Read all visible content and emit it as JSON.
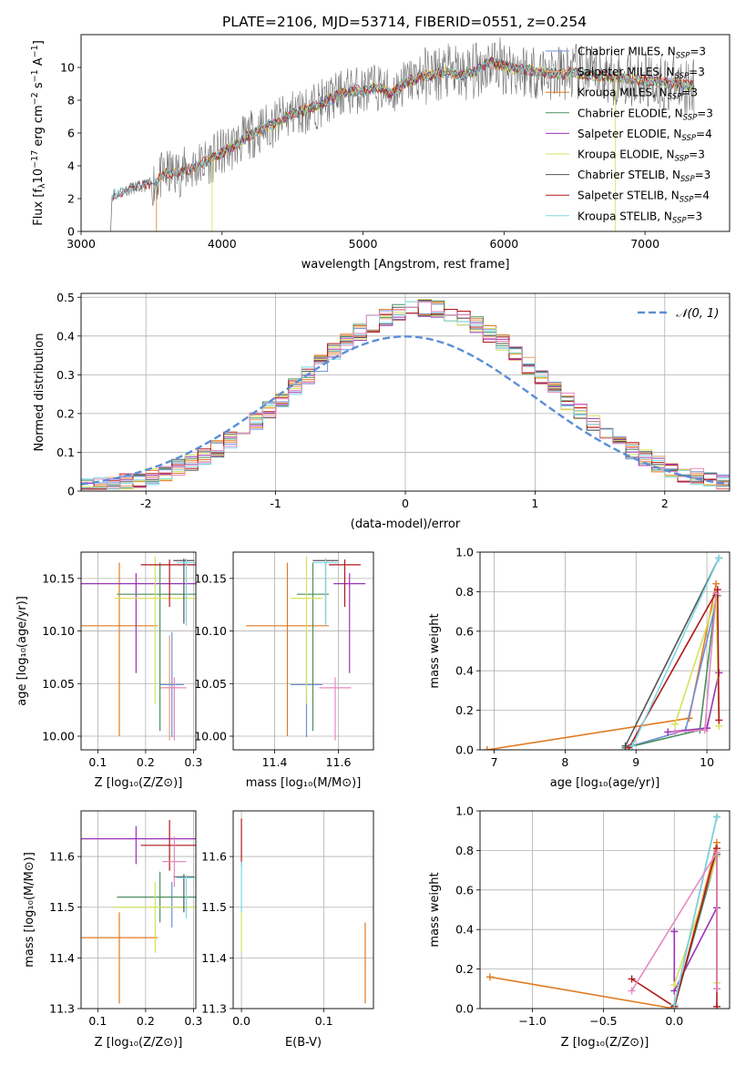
{
  "figure_title": "PLATE=2106, MJD=53714, FIBERID=0551, z=0.254",
  "colors": {
    "Chabrier MILES": "#6f8fd8",
    "Salpeter MILES": "#e8a06a",
    "Kroupa MILES": "#e07b22",
    "Chabrier ELODIE": "#4a8f5f",
    "Salpeter ELODIE": "#9b33b8",
    "Kroupa ELODIE": "#d6e15c",
    "Chabrier STELIB": "#555555",
    "Salpeter STELIB": "#b01919",
    "Kroupa STELIB": "#7ed8e6",
    "pink": "#e589c0",
    "gauss": "#5b8fd6"
  },
  "chart_data": [
    {
      "id": "spectrum",
      "type": "line",
      "xlabel": "wavelength [Angstrom, rest frame]",
      "ylabel_parts": [
        "Flux [f",
        "λ",
        "10",
        "−17",
        " erg cm",
        "−2",
        " s",
        "−1",
        " A",
        "−1",
        "]"
      ],
      "xlim": [
        3000,
        7600
      ],
      "ylim": [
        0,
        12
      ],
      "xticks": [
        3000,
        4000,
        5000,
        6000,
        7000
      ],
      "yticks": [
        0,
        2,
        4,
        6,
        8,
        10
      ],
      "grid": false,
      "legend_position": "right",
      "legend": [
        {
          "name": "Chabrier MILES",
          "nssp": "3"
        },
        {
          "name": "Salpeter MILES",
          "nssp": "3"
        },
        {
          "name": "Kroupa MILES",
          "nssp": "3"
        },
        {
          "name": "Chabrier ELODIE",
          "nssp": "3"
        },
        {
          "name": "Salpeter ELODIE",
          "nssp": "4"
        },
        {
          "name": "Kroupa ELODIE",
          "nssp": "3"
        },
        {
          "name": "Chabrier STELIB",
          "nssp": "3"
        },
        {
          "name": "Salpeter STELIB",
          "nssp": "4"
        },
        {
          "name": "Kroupa STELIB",
          "nssp": "3"
        }
      ],
      "continuum_points": [
        [
          3220,
          2.2
        ],
        [
          3300,
          2.5
        ],
        [
          3400,
          2.7
        ],
        [
          3500,
          2.9
        ],
        [
          3600,
          3.5
        ],
        [
          3700,
          3.6
        ],
        [
          3800,
          3.9
        ],
        [
          3900,
          4.3
        ],
        [
          4000,
          4.8
        ],
        [
          4100,
          5.3
        ],
        [
          4200,
          5.9
        ],
        [
          4300,
          6.3
        ],
        [
          4400,
          6.7
        ],
        [
          4500,
          7.2
        ],
        [
          4600,
          7.4
        ],
        [
          4700,
          7.8
        ],
        [
          4800,
          8.2
        ],
        [
          4900,
          8.6
        ],
        [
          5000,
          8.6
        ],
        [
          5100,
          8.8
        ],
        [
          5200,
          8.4
        ],
        [
          5300,
          9.1
        ],
        [
          5400,
          9.4
        ],
        [
          5500,
          9.6
        ],
        [
          5600,
          9.7
        ],
        [
          5700,
          9.5
        ],
        [
          5800,
          9.8
        ],
        [
          5900,
          10.3
        ],
        [
          6000,
          10.1
        ],
        [
          6100,
          9.9
        ],
        [
          6200,
          9.8
        ],
        [
          6300,
          9.7
        ],
        [
          6400,
          9.6
        ],
        [
          6500,
          9.7
        ],
        [
          6600,
          9.5
        ],
        [
          6700,
          9.5
        ],
        [
          6800,
          9.4
        ],
        [
          6900,
          9.3
        ],
        [
          7000,
          9.2
        ],
        [
          7100,
          9.1
        ],
        [
          7200,
          9.0
        ],
        [
          7300,
          8.9
        ],
        [
          7350,
          8.9
        ]
      ]
    },
    {
      "id": "residuals",
      "type": "histogram",
      "xlabel": "(data-model)/error",
      "ylabel": "Normed distribution",
      "xlim": [
        -2.5,
        2.5
      ],
      "ylim": [
        0,
        0.51
      ],
      "xticks": [
        -2,
        -1,
        0,
        1,
        2
      ],
      "yticks": [
        0.0,
        0.1,
        0.2,
        0.3,
        0.4,
        0.5
      ],
      "grid": true,
      "legend_position": "top-right",
      "gaussian_label": "𝒩(0, 1)",
      "gaussian_mean": 0,
      "gaussian_sigma": 1,
      "bin_width": 0.1
    },
    {
      "id": "age_vs_Z",
      "type": "errorbar",
      "xlabel": "Z [log₁₀(Z/Z⊙)]",
      "ylabel": "age  [log₁₀(age/yr)]",
      "xlim": [
        0.065,
        0.305
      ],
      "ylim": [
        9.987,
        10.175
      ],
      "xticks": [
        0.1,
        0.2,
        0.3
      ],
      "yticks": [
        "10.00",
        "10.05",
        "10.10",
        "10.15"
      ],
      "grid": true,
      "points": [
        {
          "model": "Kroupa MILES",
          "x": 0.145,
          "xerr": 0.08,
          "y": 10.105,
          "yerr": [
            0.105,
            0.06
          ]
        },
        {
          "model": "Salpeter MILES",
          "x": 0.25,
          "xerr": 0.02,
          "y": 10.046,
          "yerr": [
            0.05,
            0.05
          ]
        },
        {
          "model": "Chabrier MILES",
          "x": 0.255,
          "xerr": 0.025,
          "y": 10.049,
          "yerr": [
            0.05,
            0.05
          ]
        },
        {
          "model": "Salpeter ELODIE",
          "x": 0.18,
          "xerr": 0.125,
          "y": 10.145,
          "yerr": [
            0.085,
            0.01
          ]
        },
        {
          "model": "Chabrier ELODIE",
          "x": 0.23,
          "xerr": 0.09,
          "y": 10.135,
          "yerr": [
            0.13,
            0.03
          ]
        },
        {
          "model": "Kroupa ELODIE",
          "x": 0.22,
          "xerr": 0.085,
          "y": 10.131,
          "yerr": [
            0.1,
            0.04
          ]
        },
        {
          "model": "Salpeter STELIB",
          "x": 0.25,
          "xerr": 0.06,
          "y": 10.163,
          "yerr": [
            0.04,
            0.005
          ]
        },
        {
          "model": "Chabrier STELIB",
          "x": 0.28,
          "xerr": 0.022,
          "y": 10.167,
          "yerr": [
            0.06,
            0.002
          ]
        },
        {
          "model": "Kroupa STELIB",
          "x": 0.285,
          "xerr": 0.02,
          "y": 10.165,
          "yerr": [
            0.06,
            0.004
          ]
        },
        {
          "model": "pink",
          "x": 0.26,
          "xerr": 0.025,
          "y": 10.046,
          "yerr": [
            0.05,
            0.01
          ]
        }
      ]
    },
    {
      "id": "age_vs_mass",
      "type": "errorbar",
      "xlabel": "mass [log₁₀(M/M⊙)]",
      "ylabel": "",
      "xlim": [
        11.27,
        11.71
      ],
      "ylim": [
        9.987,
        10.175
      ],
      "xticks": [
        "11.4",
        "11.6"
      ],
      "yticks": [
        "10.00",
        "10.05",
        "10.10",
        "10.15"
      ],
      "grid": true,
      "points": [
        {
          "model": "Kroupa MILES",
          "x": 11.44,
          "xerr": 0.13,
          "y": 10.105,
          "yerr": [
            0.105,
            0.06
          ]
        },
        {
          "model": "Chabrier MILES",
          "x": 11.5,
          "xerr": 0.05,
          "y": 10.049,
          "yerr": [
            0.05,
            0.05
          ]
        },
        {
          "model": "Salpeter ELODIE",
          "x": 11.635,
          "xerr": 0.05,
          "y": 10.145,
          "yerr": [
            0.085,
            0.01
          ]
        },
        {
          "model": "Chabrier ELODIE",
          "x": 11.52,
          "xerr": 0.05,
          "y": 10.135,
          "yerr": [
            0.13,
            0.03
          ]
        },
        {
          "model": "Kroupa ELODIE",
          "x": 11.5,
          "xerr": 0.05,
          "y": 10.131,
          "yerr": [
            0.1,
            0.04
          ]
        },
        {
          "model": "Salpeter STELIB",
          "x": 11.62,
          "xerr": 0.05,
          "y": 10.163,
          "yerr": [
            0.04,
            0.005
          ]
        },
        {
          "model": "Chabrier STELIB",
          "x": 11.56,
          "xerr": 0.04,
          "y": 10.167,
          "yerr": [
            0.06,
            0.002
          ]
        },
        {
          "model": "Kroupa STELIB",
          "x": 11.56,
          "xerr": 0.04,
          "y": 10.165,
          "yerr": [
            0.06,
            0.004
          ]
        },
        {
          "model": "pink",
          "x": 11.59,
          "xerr": 0.05,
          "y": 10.046,
          "yerr": [
            0.05,
            0.01
          ]
        }
      ]
    },
    {
      "id": "weight_vs_age",
      "type": "line",
      "xlabel": "age  [log₁₀(age/yr)]",
      "ylabel": "mass weight",
      "xlim": [
        6.8,
        10.32
      ],
      "ylim": [
        0,
        1.0
      ],
      "xticks": [
        7,
        8,
        9,
        10
      ],
      "yticks": [
        "0.0",
        "0.2",
        "0.4",
        "0.6",
        "0.8",
        "1.0"
      ],
      "grid": true,
      "series": [
        {
          "model": "Kroupa MILES",
          "x": [
            6.9,
            9.75,
            10.13
          ],
          "y": [
            0.0,
            0.16,
            0.84
          ]
        },
        {
          "model": "Chabrier MILES",
          "x": [
            8.85,
            9.7,
            10.15
          ],
          "y": [
            0.01,
            0.1,
            0.78
          ]
        },
        {
          "model": "Salpeter ELODIE",
          "x": [
            9.45,
            10.0,
            10.17
          ],
          "y": [
            0.09,
            0.11,
            0.39
          ]
        },
        {
          "model": "Chabrier ELODIE",
          "x": [
            8.85,
            9.9,
            10.13
          ],
          "y": [
            0.01,
            0.1,
            0.78
          ]
        },
        {
          "model": "Kroupa ELODIE",
          "x": [
            9.55,
            10.13,
            10.17
          ],
          "y": [
            0.13,
            0.77,
            0.12
          ]
        },
        {
          "model": "Chabrier STELIB",
          "x": [
            8.85,
            10.17
          ],
          "y": [
            0.02,
            0.97
          ]
        },
        {
          "model": "Salpeter STELIB",
          "x": [
            8.9,
            10.15,
            10.17
          ],
          "y": [
            0.01,
            0.81,
            0.15
          ]
        },
        {
          "model": "Kroupa STELIB",
          "x": [
            8.95,
            10.17
          ],
          "y": [
            0.02,
            0.97
          ]
        },
        {
          "model": "pink",
          "x": [
            9.55,
            9.97,
            10.13
          ],
          "y": [
            0.09,
            0.1,
            0.79
          ]
        }
      ]
    },
    {
      "id": "mass_vs_Z",
      "type": "errorbar",
      "xlabel": "Z [log₁₀(Z/Z⊙)]",
      "ylabel": "mass [log₁₀(M/M⊙)]",
      "xlim": [
        0.065,
        0.305
      ],
      "ylim": [
        11.3,
        11.69
      ],
      "xticks": [
        0.1,
        0.2,
        0.3
      ],
      "yticks": [
        "11.3",
        "11.4",
        "11.5",
        "11.6"
      ],
      "grid": true,
      "points": [
        {
          "model": "Kroupa MILES",
          "x": 0.145,
          "xerr": 0.08,
          "y": 11.44,
          "yerr": [
            0.13,
            0.05
          ]
        },
        {
          "model": "Chabrier MILES",
          "x": 0.255,
          "xerr": 0.025,
          "y": 11.5,
          "yerr": [
            0.04,
            0.05
          ]
        },
        {
          "model": "Salpeter ELODIE",
          "x": 0.18,
          "xerr": 0.125,
          "y": 11.635,
          "yerr": [
            0.05,
            0.025
          ]
        },
        {
          "model": "Chabrier ELODIE",
          "x": 0.23,
          "xerr": 0.09,
          "y": 11.52,
          "yerr": [
            0.05,
            0.05
          ]
        },
        {
          "model": "Kroupa ELODIE",
          "x": 0.22,
          "xerr": 0.085,
          "y": 11.5,
          "yerr": [
            0.09,
            0.05
          ]
        },
        {
          "model": "Salpeter STELIB",
          "x": 0.25,
          "xerr": 0.06,
          "y": 11.622,
          "yerr": [
            0.05,
            0.05
          ]
        },
        {
          "model": "Chabrier STELIB",
          "x": 0.28,
          "xerr": 0.022,
          "y": 11.56,
          "yerr": [
            0.07,
            0.005
          ]
        },
        {
          "model": "Kroupa STELIB",
          "x": 0.285,
          "xerr": 0.02,
          "y": 11.558,
          "yerr": [
            0.08,
            0.005
          ]
        },
        {
          "model": "pink",
          "x": 0.26,
          "xerr": 0.025,
          "y": 11.59,
          "yerr": [
            0.05,
            0.05
          ]
        }
      ]
    },
    {
      "id": "mass_vs_ebv",
      "type": "errorbar",
      "xlabel": "E(B-V)",
      "ylabel": "",
      "xlim": [
        -0.01,
        0.16
      ],
      "ylim": [
        11.3,
        11.69
      ],
      "xticks": [
        "0.0",
        "0.1"
      ],
      "yticks": [
        "11.3",
        "11.4",
        "11.5",
        "11.6"
      ],
      "grid": true,
      "points": [
        {
          "model": "Salpeter STELIB",
          "x": 0.0,
          "xerr": 0.0,
          "y": 11.63,
          "yerr": [
            0.05,
            0.045
          ]
        },
        {
          "model": "Kroupa ELODIE",
          "x": 0.0,
          "xerr": 0.0,
          "y": 11.46,
          "yerr": [
            0.05,
            0.05
          ]
        },
        {
          "model": "Kroupa STELIB",
          "x": 0.0,
          "xerr": 0.0,
          "y": 11.55,
          "yerr": [
            0.06,
            0.04
          ]
        },
        {
          "model": "Kroupa MILES",
          "x": 0.15,
          "xerr": 0.0,
          "y": 11.39,
          "yerr": [
            0.08,
            0.08
          ]
        }
      ]
    },
    {
      "id": "weight_vs_Z",
      "type": "line",
      "xlabel": "Z [log₁₀(Z/Z⊙)]",
      "ylabel": "mass weight",
      "xlim": [
        -1.37,
        0.39
      ],
      "ylim": [
        0,
        1.0
      ],
      "xticks": [
        "−1.0",
        "−0.5",
        "0.0"
      ],
      "xtick_values": [
        -1.0,
        -0.5,
        0.0
      ],
      "yticks": [
        "0.0",
        "0.2",
        "0.4",
        "0.6",
        "0.8",
        "1.0"
      ],
      "grid": true,
      "series": [
        {
          "model": "Kroupa MILES",
          "x": [
            -1.3,
            0.0,
            0.3
          ],
          "y": [
            0.16,
            0.0,
            0.84
          ]
        },
        {
          "model": "Chabrier MILES",
          "x": [
            0.0,
            0.3,
            0.3
          ],
          "y": [
            0.01,
            0.78,
            0.1
          ]
        },
        {
          "model": "Salpeter ELODIE",
          "x": [
            0.0,
            0.0,
            0.3,
            0.3
          ],
          "y": [
            0.39,
            0.09,
            0.51,
            0.1
          ]
        },
        {
          "model": "Chabrier ELODIE",
          "x": [
            0.0,
            0.3,
            0.3
          ],
          "y": [
            0.01,
            0.78,
            0.1
          ]
        },
        {
          "model": "Kroupa ELODIE",
          "x": [
            0.0,
            0.3,
            0.3
          ],
          "y": [
            0.12,
            0.77,
            0.13
          ]
        },
        {
          "model": "Chabrier STELIB",
          "x": [
            0.0,
            0.3
          ],
          "y": [
            0.02,
            0.97
          ]
        },
        {
          "model": "Salpeter STELIB",
          "x": [
            -0.3,
            0.0,
            0.3,
            0.3
          ],
          "y": [
            0.15,
            0.01,
            0.81,
            0.01
          ]
        },
        {
          "model": "Kroupa STELIB",
          "x": [
            0.0,
            0.3
          ],
          "y": [
            0.02,
            0.97
          ]
        },
        {
          "model": "pink",
          "x": [
            -0.3,
            0.3,
            0.3
          ],
          "y": [
            0.09,
            0.79,
            0.1
          ]
        }
      ]
    }
  ]
}
